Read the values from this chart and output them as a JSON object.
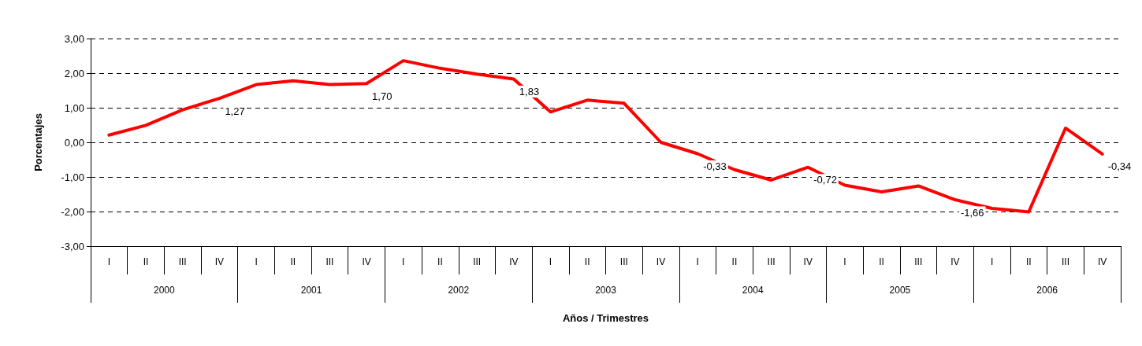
{
  "chart_data": {
    "type": "line",
    "xlabel": "Años / Trimestres",
    "ylabel": "Porcentajes",
    "categories": [
      "I",
      "II",
      "III",
      "IV",
      "I",
      "II",
      "III",
      "IV",
      "I",
      "II",
      "III",
      "IV",
      "I",
      "II",
      "III",
      "IV",
      "I",
      "II",
      "III",
      "IV",
      "I",
      "II",
      "III",
      "IV",
      "I",
      "II",
      "III",
      "IV"
    ],
    "annotations": [
      "2000",
      "2001",
      "2002",
      "2003",
      "2004",
      "2005",
      "2006"
    ],
    "series": [
      {
        "color": "#ff0000",
        "values": [
          0.21,
          0.49,
          0.94,
          1.27,
          1.67,
          1.78,
          1.67,
          1.7,
          2.36,
          2.14,
          1.97,
          1.83,
          0.88,
          1.22,
          1.13,
          0.0,
          -0.33,
          -0.79,
          -1.09,
          -0.72,
          -1.24,
          -1.43,
          -1.26,
          -1.66,
          -1.91,
          -2.01,
          0.41,
          -0.34
        ],
        "value_labels": [
          null,
          null,
          null,
          "1,27",
          null,
          null,
          null,
          "1,70",
          null,
          null,
          null,
          "1,83",
          null,
          null,
          null,
          null,
          "-0,33",
          null,
          null,
          "-0,72",
          null,
          null,
          null,
          "-1,66",
          null,
          null,
          null,
          "-0,34"
        ]
      }
    ],
    "ylim": [
      -3,
      3
    ],
    "yticks": [
      {
        "value": -3,
        "label": "-3,00"
      },
      {
        "value": -2,
        "label": "-2,00"
      },
      {
        "value": -1,
        "label": "-1,00"
      },
      {
        "value": 0,
        "label": "0,00"
      },
      {
        "value": 1,
        "label": "1,00"
      },
      {
        "value": 2,
        "label": "2,00"
      },
      {
        "value": 3,
        "label": "3,00"
      }
    ],
    "grid": "y",
    "line_style": "solid",
    "marker": "none"
  }
}
